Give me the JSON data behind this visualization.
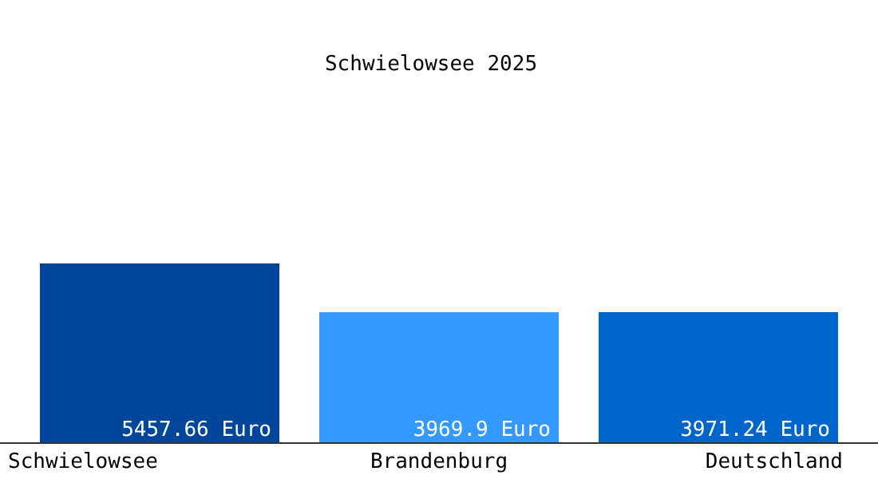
{
  "chart_data": {
    "type": "bar",
    "title": "Schwielowsee 2025",
    "categories": [
      "Schwielowsee",
      "Brandenburg",
      "Deutschland"
    ],
    "values": [
      5457.66,
      3969.9,
      3971.24
    ],
    "colors": [
      "#00479c",
      "#3399ff",
      "#0066cc"
    ],
    "value_labels": [
      "5457.66 Euro",
      "3969.9 Euro",
      "3971.24 Euro"
    ],
    "orientation": "vertical"
  }
}
